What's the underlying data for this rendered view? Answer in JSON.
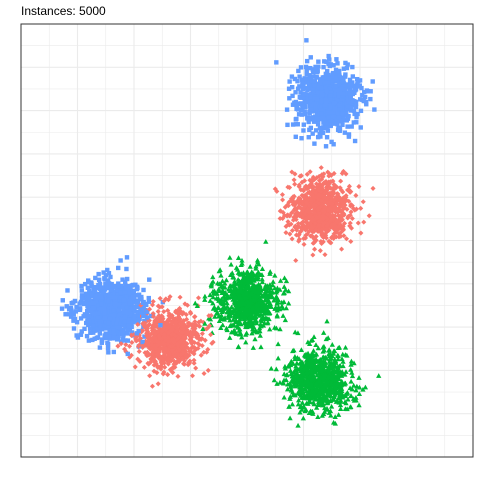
{
  "chart_data": {
    "type": "scatter",
    "title": "Instances: 5000",
    "xlabel": "",
    "ylabel": "",
    "xlim": [
      0,
      1
    ],
    "ylim": [
      0,
      1
    ],
    "grid": true,
    "legend": "none",
    "colors": {
      "red": "#F8766D",
      "green": "#00BA38",
      "blue": "#619CFF",
      "grid": "#EBEBEB",
      "border": "#333333"
    },
    "series": [
      {
        "color": "#F8766D",
        "marker": "diamond",
        "clusters": [
          {
            "cx": 0.66,
            "cy": 0.57,
            "sdx": 0.035,
            "sdy": 0.035,
            "n": 833
          },
          {
            "cx": 0.33,
            "cy": 0.27,
            "sdx": 0.035,
            "sdy": 0.035,
            "n": 833
          }
        ]
      },
      {
        "color": "#00BA38",
        "marker": "triangle",
        "clusters": [
          {
            "cx": 0.5,
            "cy": 0.36,
            "sdx": 0.035,
            "sdy": 0.035,
            "n": 833
          },
          {
            "cx": 0.66,
            "cy": 0.18,
            "sdx": 0.035,
            "sdy": 0.035,
            "n": 834
          }
        ]
      },
      {
        "color": "#619CFF",
        "marker": "square",
        "clusters": [
          {
            "cx": 0.68,
            "cy": 0.83,
            "sdx": 0.035,
            "sdy": 0.035,
            "n": 833
          },
          {
            "cx": 0.2,
            "cy": 0.34,
            "sdx": 0.035,
            "sdy": 0.035,
            "n": 834
          }
        ]
      }
    ]
  }
}
